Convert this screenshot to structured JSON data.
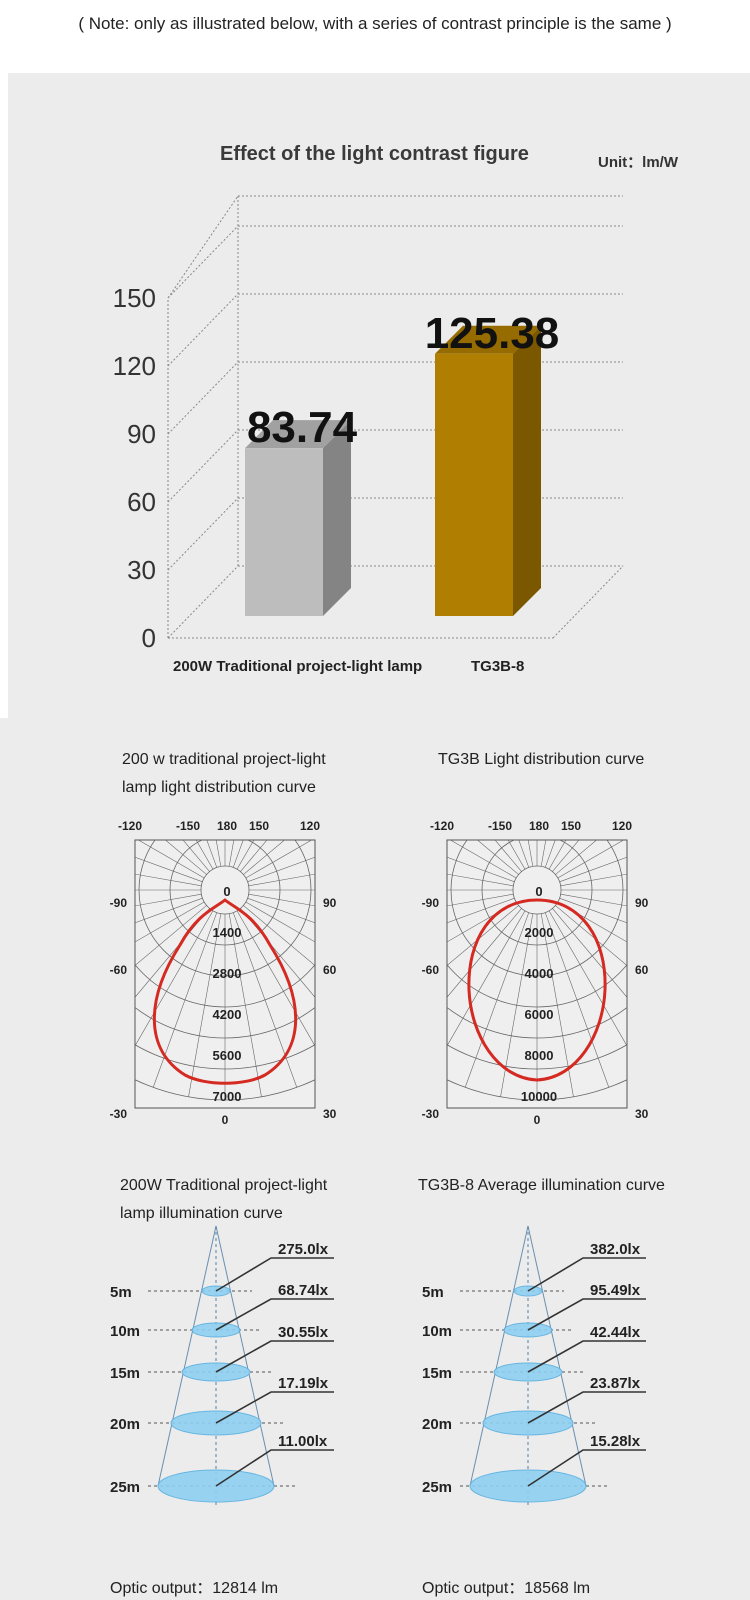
{
  "note": "( Note: only as illustrated below, with a series of contrast principle is the same )",
  "bar_chart": {
    "title": "Effect of the light contrast figure",
    "unit": "Unit：lm/W"
  },
  "chart_data": [
    {
      "type": "bar",
      "title": "Effect of the light contrast figure",
      "categories": [
        "200W Traditional project-light lamp",
        "TG3B-8"
      ],
      "values": [
        83.74,
        125.38
      ],
      "value_labels": [
        "83.74",
        "125.38"
      ],
      "yticks": [
        "0",
        "30",
        "60",
        "90",
        "120",
        "150"
      ],
      "ylim": [
        0,
        150
      ],
      "colors": [
        "#bdbdbd",
        "#b07e00"
      ]
    },
    {
      "type": "line",
      "title": "200 w traditional project-light lamp light distribution curve",
      "angle_ticks": [
        "-120",
        "-150",
        "180",
        "150",
        "120",
        "-90",
        "90",
        "-60",
        "60",
        "-30",
        "30",
        "0"
      ],
      "radial_ticks": [
        "0",
        "1400",
        "2800",
        "4200",
        "5600",
        "7000"
      ],
      "rmax": 7000
    },
    {
      "type": "line",
      "title": "TG3B Light distribution curve",
      "angle_ticks": [
        "-120",
        "-150",
        "180",
        "150",
        "120",
        "-90",
        "90",
        "-60",
        "60",
        "-30",
        "30",
        "0"
      ],
      "radial_ticks": [
        "0",
        "2000",
        "4000",
        "6000",
        "8000",
        "10000"
      ],
      "rmax": 10000
    }
  ],
  "polar": [
    {
      "title_line1": "200 w traditional project-light",
      "title_line2": "lamp light distribution curve",
      "top_labels": [
        "-120",
        "-150",
        "180",
        "150",
        "120"
      ],
      "left_labels": [
        "-90",
        "-60",
        "-30"
      ],
      "right_labels": [
        "90",
        "60",
        "30"
      ],
      "bottom_label": "0",
      "rings": [
        "0",
        "1400",
        "2800",
        "4200",
        "5600",
        "7000"
      ]
    },
    {
      "title_line1": "TG3B Light distribution curve",
      "title_line2": "",
      "top_labels": [
        "-120",
        "-150",
        "180",
        "150",
        "120"
      ],
      "left_labels": [
        "-90",
        "-60",
        "-30"
      ],
      "right_labels": [
        "90",
        "60",
        "30"
      ],
      "bottom_label": "0",
      "rings": [
        "0",
        "2000",
        "4000",
        "6000",
        "8000",
        "10000"
      ]
    }
  ],
  "illum": [
    {
      "title_line1": "200W Traditional project-light",
      "title_line2": "lamp illumination curve",
      "distances": [
        "5m",
        "10m",
        "15m",
        "20m",
        "25m"
      ],
      "lux": [
        "275.0lx",
        "68.74lx",
        "30.55lx",
        "17.19lx",
        "11.00lx"
      ],
      "optic_output": "Optic output：12814 lm"
    },
    {
      "title_line1": "TG3B-8 Average illumination curve",
      "title_line2": "",
      "distances": [
        "5m",
        "10m",
        "15m",
        "20m",
        "25m"
      ],
      "lux": [
        "382.0lx",
        "95.49lx",
        "42.44lx",
        "23.87lx",
        "15.28lx"
      ],
      "optic_output": "Optic output：18568 lm"
    }
  ],
  "colors": {
    "curve": "#d42a22",
    "grid": "#666666",
    "disc": "#8fd0f2",
    "bar_gray": "#bdbdbd",
    "bar_gold": "#b07e00"
  }
}
